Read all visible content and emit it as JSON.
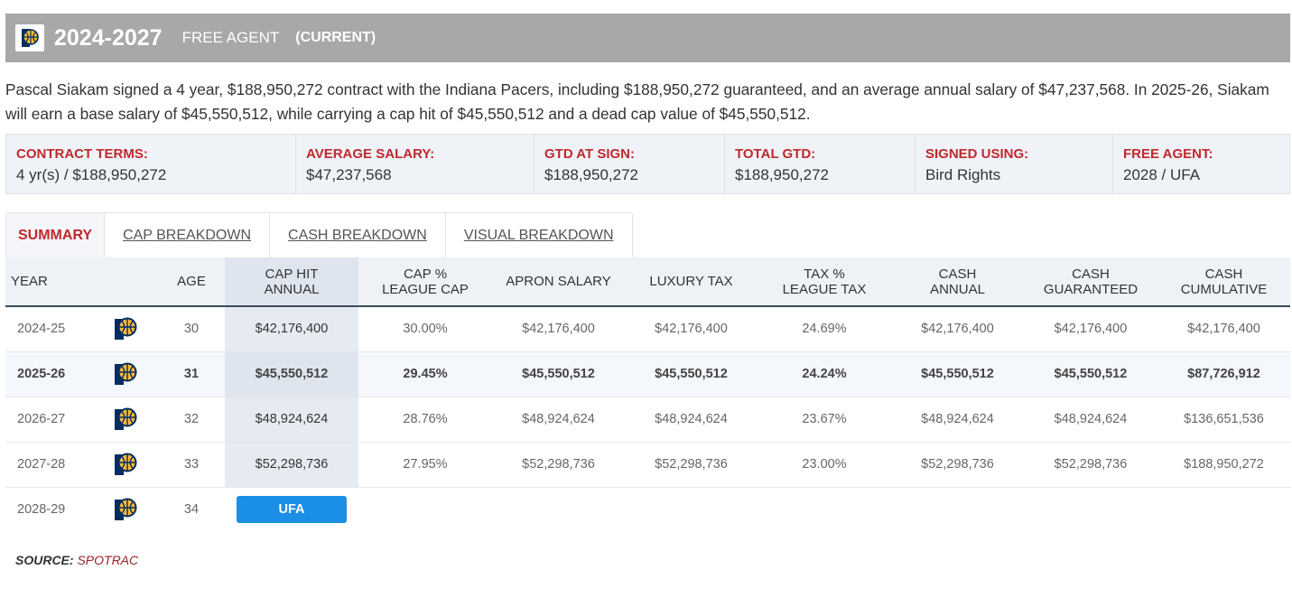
{
  "header": {
    "years": "2024-2027",
    "status": "FREE AGENT",
    "current": "(CURRENT)",
    "team_logo": "pacers-logo-icon"
  },
  "description": "Pascal Siakam signed a 4 year, $188,950,272 contract with the Indiana Pacers, including $188,950,272 guaranteed, and an average annual salary of $47,237,568. In 2025-26, Siakam will earn a base salary of $45,550,512, while carrying a cap hit of $45,550,512 and a dead cap value of $45,550,512.",
  "terms": [
    {
      "label": "CONTRACT TERMS:",
      "value": "4 yr(s) / $188,950,272"
    },
    {
      "label": "AVERAGE SALARY:",
      "value": "$47,237,568"
    },
    {
      "label": "GTD AT SIGN:",
      "value": "$188,950,272"
    },
    {
      "label": "TOTAL GTD:",
      "value": "$188,950,272"
    },
    {
      "label": "SIGNED USING:",
      "value": "Bird Rights"
    },
    {
      "label": "FREE AGENT:",
      "value": "2028 / UFA"
    }
  ],
  "tabs": [
    {
      "label": "SUMMARY",
      "active": true
    },
    {
      "label": "CAP BREAKDOWN",
      "active": false
    },
    {
      "label": "CASH BREAKDOWN",
      "active": false
    },
    {
      "label": "VISUAL BREAKDOWN",
      "active": false
    }
  ],
  "table": {
    "headers": {
      "year": "YEAR",
      "age": "AGE",
      "cap_hit_1": "CAP HIT",
      "cap_hit_2": "ANNUAL",
      "cap_pct_1": "CAP %",
      "cap_pct_2": "LEAGUE CAP",
      "apron": "APRON SALARY",
      "luxury": "LUXURY TAX",
      "tax_pct_1": "TAX %",
      "tax_pct_2": "LEAGUE TAX",
      "cash_annual_1": "CASH",
      "cash_annual_2": "ANNUAL",
      "cash_gtd_1": "CASH",
      "cash_gtd_2": "GUARANTEED",
      "cash_cum_1": "CASH",
      "cash_cum_2": "CUMULATIVE"
    },
    "rows": [
      {
        "year": "2024-25",
        "age": "30",
        "cap_hit": "$42,176,400",
        "cap_pct": "30.00%",
        "apron": "$42,176,400",
        "luxury": "$42,176,400",
        "tax_pct": "24.69%",
        "cash_annual": "$42,176,400",
        "cash_gtd": "$42,176,400",
        "cash_cum": "$42,176,400"
      },
      {
        "year": "2025-26",
        "age": "31",
        "cap_hit": "$45,550,512",
        "cap_pct": "29.45%",
        "apron": "$45,550,512",
        "luxury": "$45,550,512",
        "tax_pct": "24.24%",
        "cash_annual": "$45,550,512",
        "cash_gtd": "$45,550,512",
        "cash_cum": "$87,726,912"
      },
      {
        "year": "2026-27",
        "age": "32",
        "cap_hit": "$48,924,624",
        "cap_pct": "28.76%",
        "apron": "$48,924,624",
        "luxury": "$48,924,624",
        "tax_pct": "23.67%",
        "cash_annual": "$48,924,624",
        "cash_gtd": "$48,924,624",
        "cash_cum": "$136,651,536"
      },
      {
        "year": "2027-28",
        "age": "33",
        "cap_hit": "$52,298,736",
        "cap_pct": "27.95%",
        "apron": "$52,298,736",
        "luxury": "$52,298,736",
        "tax_pct": "23.00%",
        "cash_annual": "$52,298,736",
        "cash_gtd": "$52,298,736",
        "cash_cum": "$188,950,272"
      }
    ],
    "ufa_row": {
      "year": "2028-29",
      "age": "34",
      "badge": "UFA"
    }
  },
  "source": {
    "label": "SOURCE:",
    "name": "SPOTRAC"
  },
  "colors": {
    "accent_red": "#c0282d",
    "ufa_blue": "#1b8ee6",
    "header_gray": "#a8a8a8",
    "pacers_navy": "#002d62",
    "pacers_gold": "#fdbb30"
  }
}
